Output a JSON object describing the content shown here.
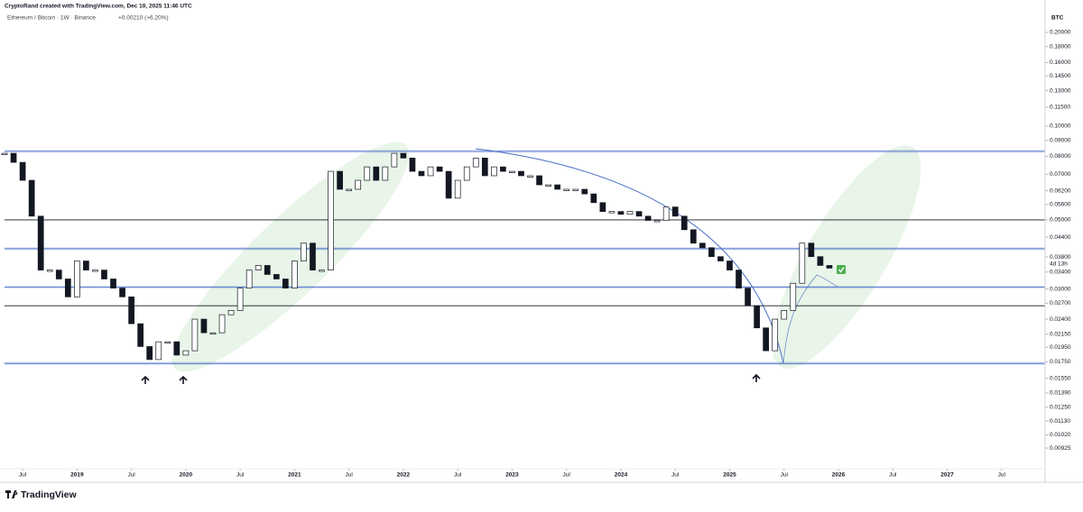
{
  "chart_data": {
    "type": "candlestick",
    "caption": "CryptoRand created with TradingView.com, Dec 10, 2025 11:46 UTC",
    "title": "Ethereum / Bitcoin · 1W · Binance",
    "subtitle": "+0.00210 (+6.20%)",
    "y_label": "BTC",
    "log_scale": true,
    "grid": false,
    "up_color": "#ffffff",
    "down_color": "#131722",
    "xlim": [
      "2018-05",
      "2027-12"
    ],
    "ylim": [
      0.00794,
      0.2378
    ],
    "x": [
      "2018-05",
      "2018-06",
      "2018-07",
      "2018-08",
      "2018-09",
      "2018-10",
      "2018-11",
      "2018-12",
      "2019-01",
      "2019-02",
      "2019-03",
      "2019-04",
      "2019-05",
      "2019-06",
      "2019-07",
      "2019-08",
      "2019-09",
      "2019-10",
      "2019-11",
      "2019-12",
      "2020-01",
      "2020-02",
      "2020-03",
      "2020-04",
      "2020-05",
      "2020-06",
      "2020-07",
      "2020-08",
      "2020-09",
      "2020-10",
      "2020-11",
      "2020-12",
      "2021-01",
      "2021-02",
      "2021-03",
      "2021-04",
      "2021-05",
      "2021-06",
      "2021-07",
      "2021-08",
      "2021-09",
      "2021-10",
      "2021-11",
      "2021-12",
      "2022-01",
      "2022-02",
      "2022-03",
      "2022-04",
      "2022-05",
      "2022-06",
      "2022-07",
      "2022-08",
      "2022-09",
      "2022-10",
      "2022-11",
      "2022-12",
      "2023-01",
      "2023-02",
      "2023-03",
      "2023-04",
      "2023-05",
      "2023-06",
      "2023-07",
      "2023-08",
      "2023-09",
      "2023-10",
      "2023-11",
      "2023-12",
      "2024-01",
      "2024-02",
      "2024-03",
      "2024-04",
      "2024-05",
      "2024-06",
      "2024-07",
      "2024-08",
      "2024-09",
      "2024-10",
      "2024-11",
      "2024-12",
      "2025-01",
      "2025-02",
      "2025-03",
      "2025-04",
      "2025-05",
      "2025-06",
      "2025-07",
      "2025-08",
      "2025-09",
      "2025-10",
      "2025-11",
      "2025-12"
    ],
    "series": [
      {
        "name": "ETHBTC",
        "values": [
          0.0818,
          0.0765,
          0.067,
          0.0514,
          0.0345,
          0.0345,
          0.0323,
          0.0283,
          0.0369,
          0.0345,
          0.0345,
          0.0323,
          0.0302,
          0.0283,
          0.0232,
          0.0196,
          0.0178,
          0.0203,
          0.0203,
          0.0184,
          0.019,
          0.024,
          0.0217,
          0.0217,
          0.0248,
          0.0256,
          0.0302,
          0.0345,
          0.0357,
          0.0334,
          0.0323,
          0.0302,
          0.0369,
          0.0421,
          0.0345,
          0.0345,
          0.0716,
          0.0627,
          0.0627,
          0.067,
          0.074,
          0.067,
          0.074,
          0.0818,
          0.079,
          0.0716,
          0.0693,
          0.074,
          0.0716,
          0.0587,
          0.067,
          0.074,
          0.079,
          0.0693,
          0.074,
          0.0716,
          0.0716,
          0.0693,
          0.0693,
          0.0648,
          0.0648,
          0.0627,
          0.0627,
          0.0627,
          0.0606,
          0.0568,
          0.0532,
          0.0532,
          0.0521,
          0.0532,
          0.0514,
          0.0498,
          0.0498,
          0.055,
          0.0514,
          0.0465,
          0.0421,
          0.0407,
          0.0381,
          0.0369,
          0.0345,
          0.0302,
          0.0265,
          0.0225,
          0.019,
          0.024,
          0.0256,
          0.0313,
          0.0421,
          0.0381,
          0.0357,
          0.035
        ]
      }
    ],
    "levels": [
      {
        "value": 0.083,
        "color": "#4a6fc7"
      },
      {
        "value": 0.05,
        "color": "#131722"
      },
      {
        "value": 0.0404,
        "color": "#4a6fc7"
      },
      {
        "value": 0.0304,
        "color": "#4a6fc7"
      },
      {
        "value": 0.0265,
        "color": "#131722"
      },
      {
        "value": 0.0173,
        "color": "#4a6fc7"
      }
    ],
    "yticks": [
      {
        "value": 0.2,
        "label": "0.20000"
      },
      {
        "value": 0.18,
        "label": "0.18000"
      },
      {
        "value": 0.16,
        "label": "0.16000"
      },
      {
        "value": 0.145,
        "label": "0.14500"
      },
      {
        "value": 0.13,
        "label": "0.13000"
      },
      {
        "value": 0.115,
        "label": "0.11500"
      },
      {
        "value": 0.1,
        "label": "0.10000"
      },
      {
        "value": 0.09,
        "label": "0.09000"
      },
      {
        "value": 0.08,
        "label": "0.08000"
      },
      {
        "value": 0.07,
        "label": "0.07000"
      },
      {
        "value": 0.062,
        "label": "0.06200"
      },
      {
        "value": 0.056,
        "label": "0.05600"
      },
      {
        "value": 0.05,
        "label": "0.05000"
      },
      {
        "value": 0.044,
        "label": "0.04400"
      },
      {
        "value": 0.038,
        "label": "0.03800"
      },
      {
        "value": 0.034,
        "label": "0.03400"
      },
      {
        "value": 0.03,
        "label": "0.03000"
      },
      {
        "value": 0.027,
        "label": "0.02700"
      },
      {
        "value": 0.024,
        "label": "0.02400"
      },
      {
        "value": 0.0215,
        "label": "0.02150"
      },
      {
        "value": 0.0195,
        "label": "0.01950"
      },
      {
        "value": 0.0175,
        "label": "0.01750"
      },
      {
        "value": 0.0155,
        "label": "0.01550"
      },
      {
        "value": 0.0139,
        "label": "0.01390"
      },
      {
        "value": 0.0125,
        "label": "0.01250"
      },
      {
        "value": 0.0113,
        "label": "0.01130"
      },
      {
        "value": 0.0102,
        "label": "0.01020"
      },
      {
        "value": 0.00925,
        "label": "0.00925"
      }
    ],
    "xticks": [
      {
        "value": "2018-07",
        "label": "Jul"
      },
      {
        "value": "2019-01",
        "label": "2019"
      },
      {
        "value": "2019-07",
        "label": "Jul"
      },
      {
        "value": "2020-01",
        "label": "2020"
      },
      {
        "value": "2020-07",
        "label": "Jul"
      },
      {
        "value": "2021-01",
        "label": "2021"
      },
      {
        "value": "2021-07",
        "label": "Jul"
      },
      {
        "value": "2022-01",
        "label": "2022"
      },
      {
        "value": "2022-07",
        "label": "Jul"
      },
      {
        "value": "2023-01",
        "label": "2023"
      },
      {
        "value": "2023-07",
        "label": "Jul"
      },
      {
        "value": "2024-01",
        "label": "2024"
      },
      {
        "value": "2024-07",
        "label": "Jul"
      },
      {
        "value": "2025-01",
        "label": "2025"
      },
      {
        "value": "2025-07",
        "label": "Jul"
      },
      {
        "value": "2026-01",
        "label": "2026"
      },
      {
        "value": "2026-07",
        "label": "Jul"
      },
      {
        "value": "2027-01",
        "label": "2027"
      },
      {
        "value": "2027-07",
        "label": "Jul"
      }
    ],
    "countdown": "4d 13h"
  },
  "brand": "TradingView"
}
